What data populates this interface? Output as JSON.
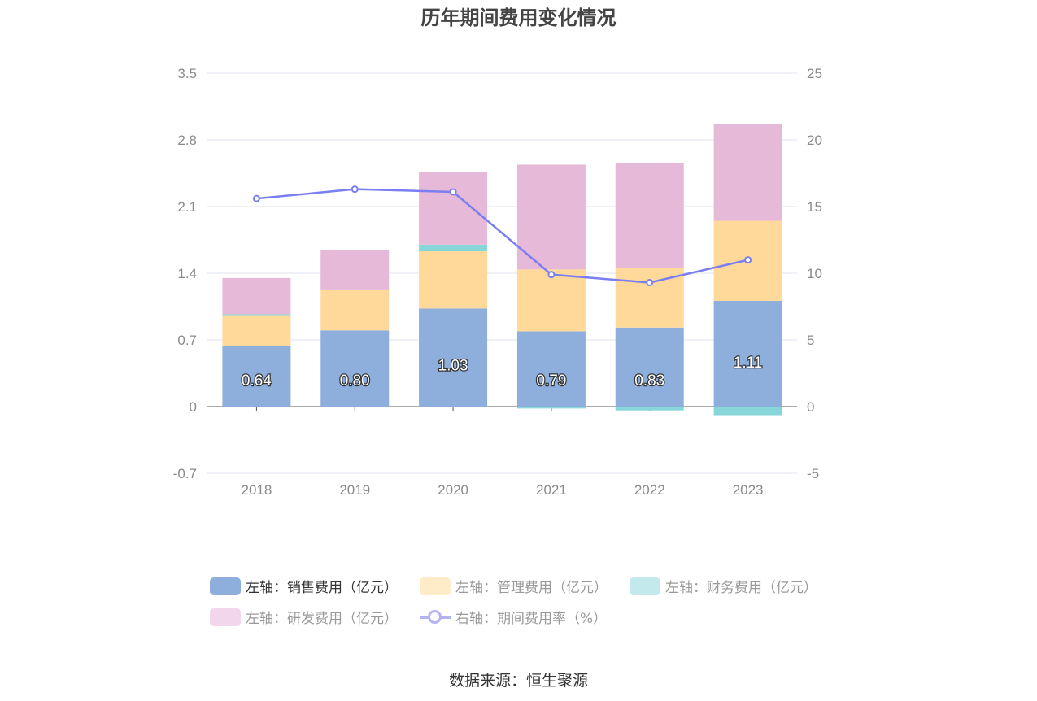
{
  "title": "历年期间费用变化情况",
  "source": "数据来源：恒生聚源",
  "legend": [
    {
      "label": "左轴：销售费用（亿元）",
      "color": "#8eaedc",
      "text_color": "#333333"
    },
    {
      "label": "左轴：管理费用（亿元）",
      "color": "#feecc9",
      "text_color": "#999999"
    },
    {
      "label": "左轴：财务费用（亿元）",
      "color": "#c3e9ec",
      "text_color": "#999999"
    },
    {
      "label": "左轴：研发费用（亿元）",
      "color": "#f2d7ec",
      "text_color": "#999999"
    },
    {
      "label": "右轴：期间费用率（%）",
      "color": "#b3b3f3",
      "text_color": "#999999"
    }
  ],
  "chart_data": {
    "type": "bar",
    "stacked": true,
    "categories": [
      "2018",
      "2019",
      "2020",
      "2021",
      "2022",
      "2023"
    ],
    "y_left": {
      "ticks": [
        "3.5",
        "2.8",
        "2.1",
        "1.4",
        "0.7",
        "0",
        "-0.7"
      ],
      "ylim": [
        -0.7,
        3.5
      ]
    },
    "y_right": {
      "ticks": [
        "25",
        "20",
        "15",
        "10",
        "5",
        "0",
        "-5"
      ],
      "ylim": [
        -5,
        25
      ]
    },
    "series": [
      {
        "name": "左轴：销售费用（亿元）",
        "axis": "left",
        "color": "#8eaedc",
        "values": [
          0.64,
          0.8,
          1.03,
          0.79,
          0.83,
          1.11
        ],
        "labels": [
          "0.64",
          "0.80",
          "1.03",
          "0.79",
          "0.83",
          "1.11"
        ]
      },
      {
        "name": "左轴：管理费用（亿元）",
        "axis": "left",
        "color": "#fed99a",
        "values": [
          0.32,
          0.43,
          0.6,
          0.65,
          0.63,
          0.84
        ]
      },
      {
        "name": "左轴：财务费用（亿元）",
        "axis": "left",
        "color": "#86d6da",
        "values": [
          0.01,
          0.0,
          0.07,
          -0.02,
          -0.04,
          -0.09
        ]
      },
      {
        "name": "左轴：研发费用（亿元）",
        "axis": "left",
        "color": "#e7b9d8",
        "values": [
          0.38,
          0.41,
          0.76,
          1.1,
          1.1,
          1.02
        ]
      },
      {
        "name": "右轴：期间费用率（%）",
        "axis": "right",
        "type": "line",
        "color": "#7b7ef0",
        "values": [
          15.6,
          16.3,
          16.1,
          9.9,
          9.3,
          11.0
        ]
      }
    ],
    "grid": true,
    "legend_position": "bottom"
  }
}
